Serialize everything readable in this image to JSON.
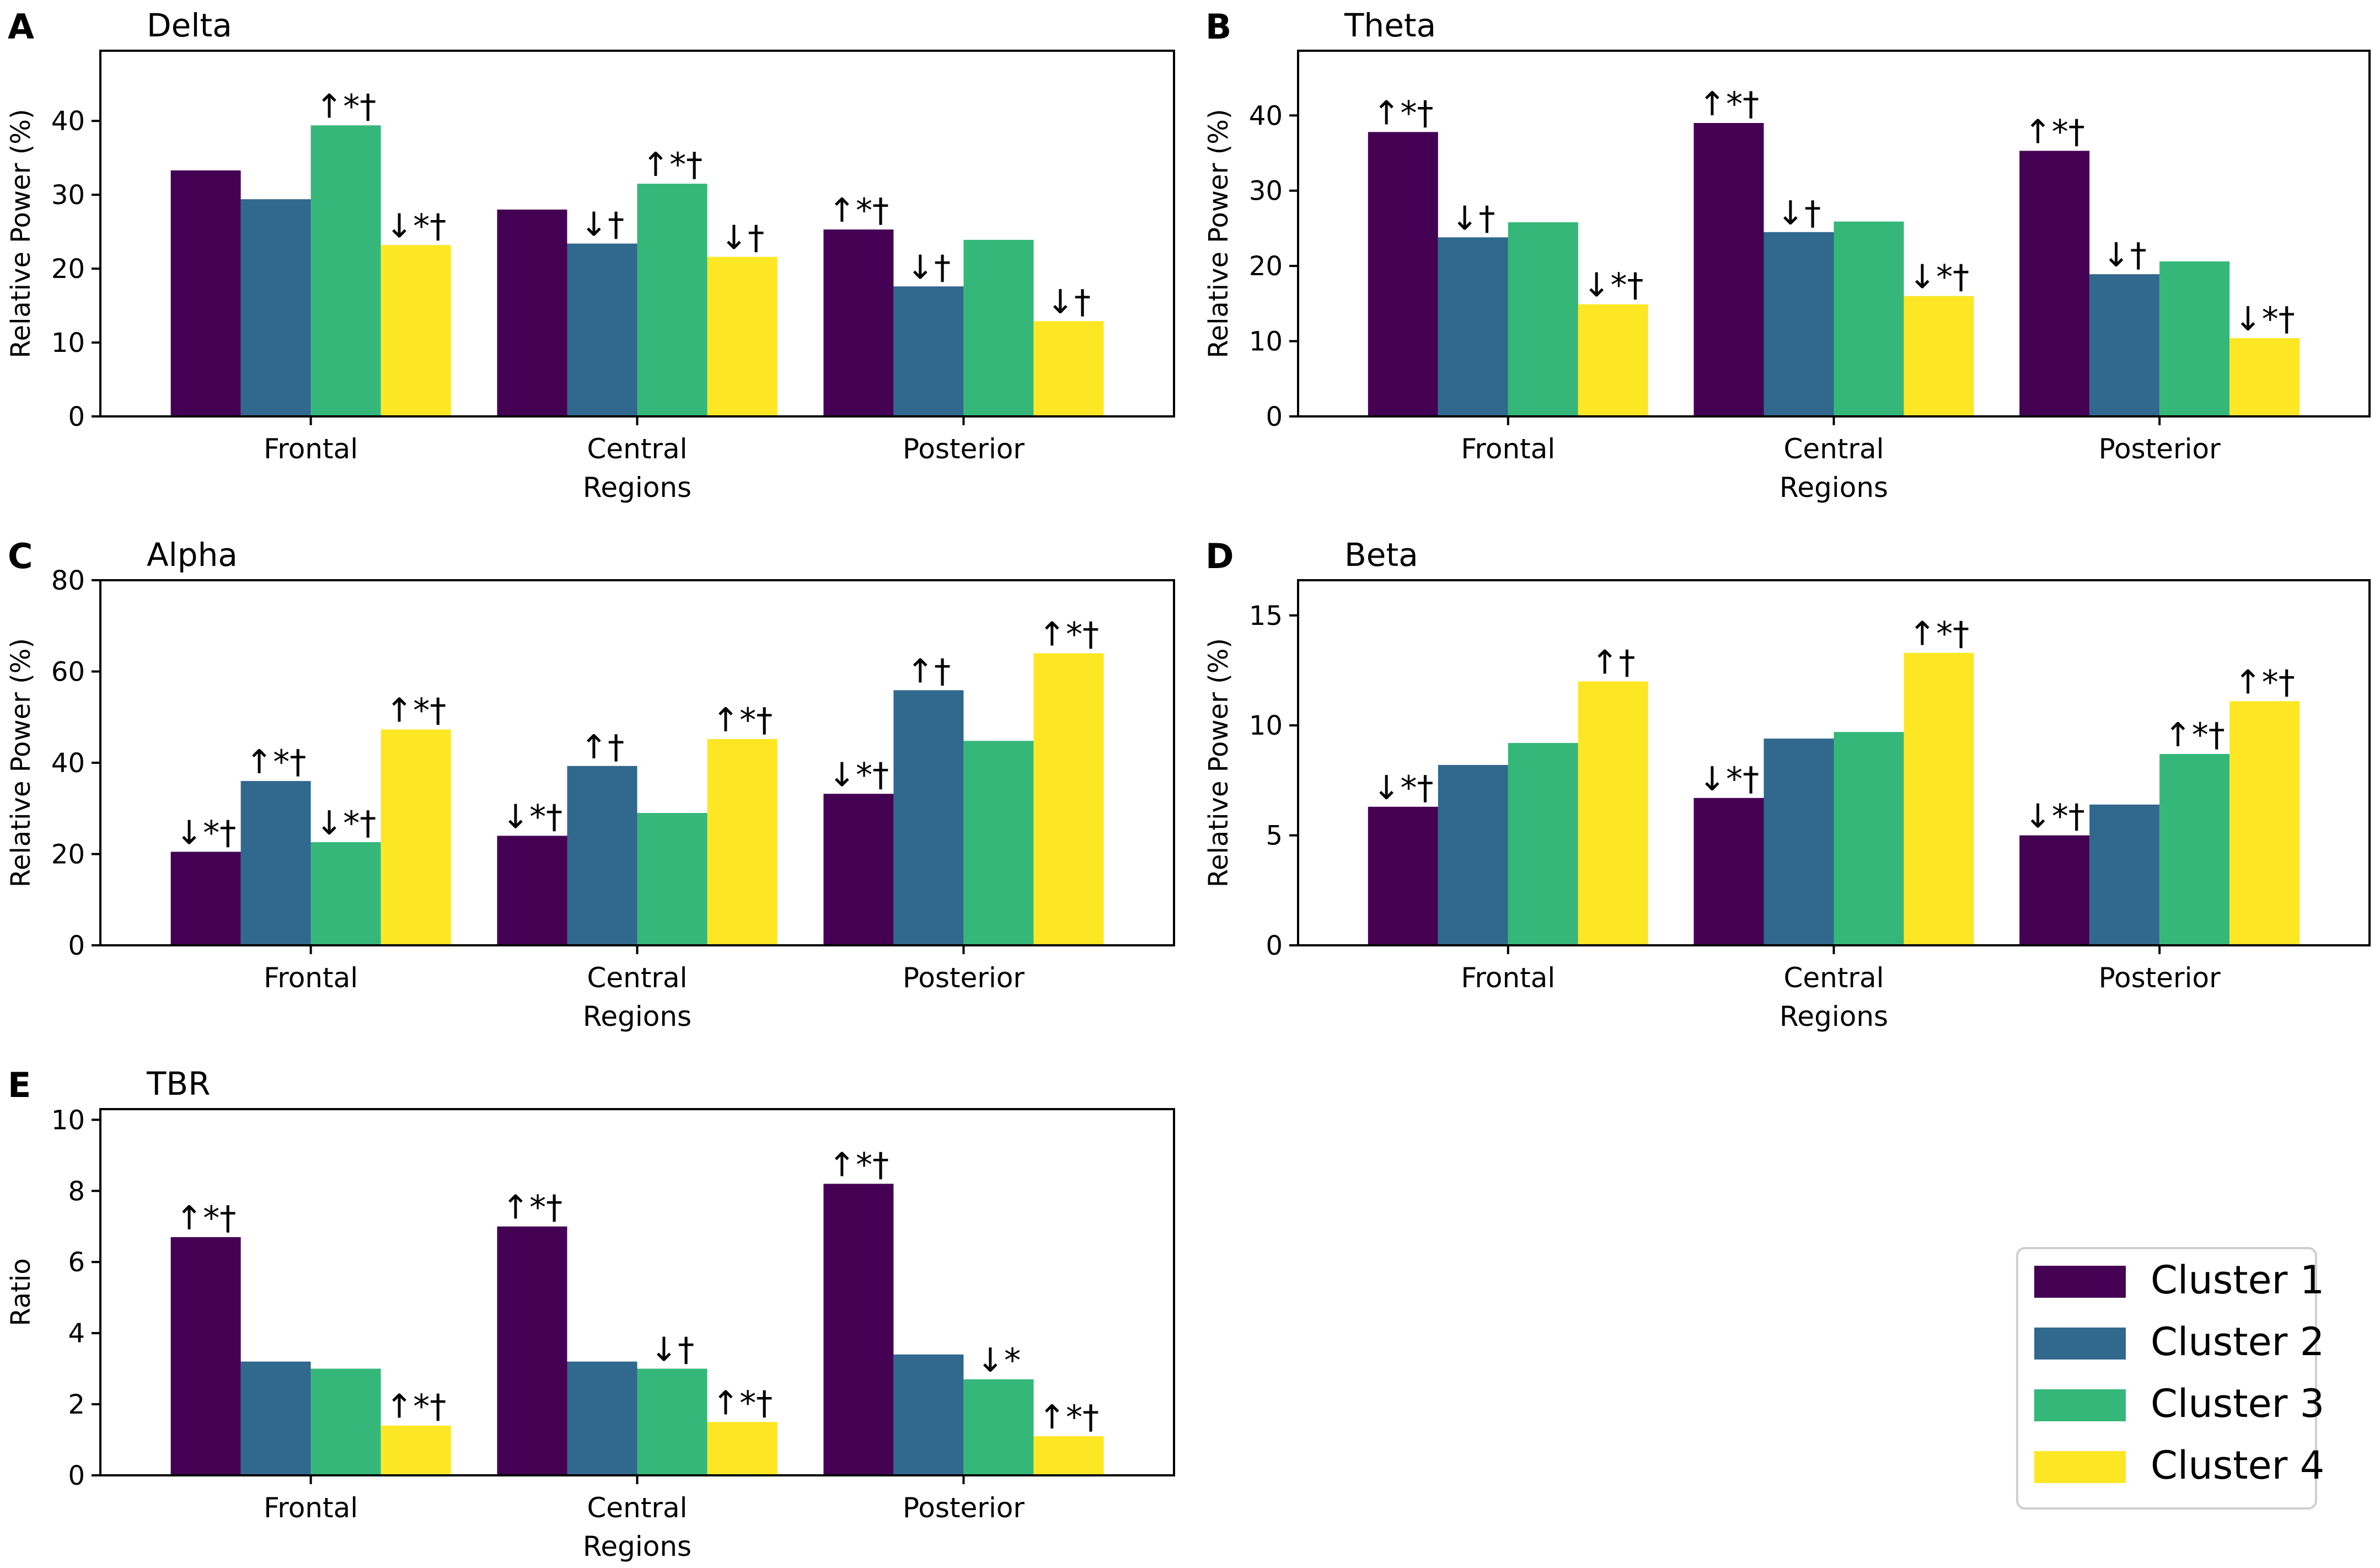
{
  "figure": {
    "legend": {
      "entries": [
        {
          "label": "Cluster 1",
          "color": "#440154"
        },
        {
          "label": "Cluster 2",
          "color": "#31688e"
        },
        {
          "label": "Cluster 3",
          "color": "#35b779"
        },
        {
          "label": "Cluster 4",
          "color": "#fde725"
        }
      ],
      "placement": "bottom-right"
    }
  },
  "chart_data": [
    {
      "type": "bar",
      "panel_letter": "A",
      "title": "Delta",
      "xlabel": "Regions",
      "ylabel": "Relative Power (%)",
      "ylim": [
        0,
        49.5
      ],
      "yticks": [
        "0",
        "10",
        "20",
        "30",
        "40"
      ],
      "categories": [
        "Frontal",
        "Central",
        "Posterior"
      ],
      "series": [
        {
          "name": "Cluster 1",
          "values": [
            33.3,
            28.0,
            25.3
          ],
          "annotations": [
            "",
            "",
            "↑*†"
          ]
        },
        {
          "name": "Cluster 2",
          "values": [
            29.4,
            23.4,
            17.6
          ],
          "annotations": [
            "",
            "↓†",
            "↓†"
          ]
        },
        {
          "name": "Cluster 3",
          "values": [
            39.4,
            31.5,
            23.9
          ],
          "annotations": [
            "↑*†",
            "↑*†",
            ""
          ]
        },
        {
          "name": "Cluster 4",
          "values": [
            23.2,
            21.6,
            12.9
          ],
          "annotations": [
            "↓*†",
            "↓†",
            "↓†"
          ]
        }
      ]
    },
    {
      "type": "bar",
      "panel_letter": "B",
      "title": "Theta",
      "xlabel": "Regions",
      "ylabel": "Relative Power (%)",
      "ylim": [
        0,
        48.6
      ],
      "yticks": [
        "0",
        "10",
        "20",
        "30",
        "40"
      ],
      "categories": [
        "Frontal",
        "Central",
        "Posterior"
      ],
      "series": [
        {
          "name": "Cluster 1",
          "values": [
            37.8,
            39.0,
            35.3
          ],
          "annotations": [
            "↑*†",
            "↑*†",
            "↑*†"
          ]
        },
        {
          "name": "Cluster 2",
          "values": [
            23.8,
            24.5,
            18.9
          ],
          "annotations": [
            "↓†",
            "↓†",
            "↓†"
          ]
        },
        {
          "name": "Cluster 3",
          "values": [
            25.8,
            25.9,
            20.6
          ],
          "annotations": [
            "",
            "",
            ""
          ]
        },
        {
          "name": "Cluster 4",
          "values": [
            14.9,
            16.0,
            10.4
          ],
          "annotations": [
            "↓*†",
            "↓*†",
            "↓*†"
          ]
        }
      ]
    },
    {
      "type": "bar",
      "panel_letter": "C",
      "title": "Alpha",
      "xlabel": "Regions",
      "ylabel": "Relative Power (%)",
      "ylim": [
        0,
        80
      ],
      "yticks": [
        "0",
        "20",
        "40",
        "60",
        "80"
      ],
      "categories": [
        "Frontal",
        "Central",
        "Posterior"
      ],
      "series": [
        {
          "name": "Cluster 1",
          "values": [
            20.5,
            24.0,
            33.2
          ],
          "annotations": [
            "↓*†",
            "↓*†",
            "↓*†"
          ]
        },
        {
          "name": "Cluster 2",
          "values": [
            36.0,
            39.3,
            55.9
          ],
          "annotations": [
            "↑*†",
            "↑†",
            "↑†"
          ]
        },
        {
          "name": "Cluster 3",
          "values": [
            22.6,
            29.0,
            44.8
          ],
          "annotations": [
            "↓*†",
            "",
            ""
          ]
        },
        {
          "name": "Cluster 4",
          "values": [
            47.3,
            45.2,
            64.0
          ],
          "annotations": [
            "↑*†",
            "↑*†",
            "↑*†"
          ]
        }
      ]
    },
    {
      "type": "bar",
      "panel_letter": "D",
      "title": "Beta",
      "xlabel": "Regions",
      "ylabel": "Relative Power (%)",
      "ylim": [
        0,
        16.6
      ],
      "yticks": [
        "0",
        "5",
        "10",
        "15"
      ],
      "categories": [
        "Frontal",
        "Central",
        "Posterior"
      ],
      "series": [
        {
          "name": "Cluster 1",
          "values": [
            6.3,
            6.7,
            5.0
          ],
          "annotations": [
            "↓*†",
            "↓*†",
            "↓*†"
          ]
        },
        {
          "name": "Cluster 2",
          "values": [
            8.2,
            9.4,
            6.4
          ],
          "annotations": [
            "",
            "",
            ""
          ]
        },
        {
          "name": "Cluster 3",
          "values": [
            9.2,
            9.7,
            8.7
          ],
          "annotations": [
            "",
            "",
            "↑*†"
          ]
        },
        {
          "name": "Cluster 4",
          "values": [
            12.0,
            13.3,
            11.1
          ],
          "annotations": [
            "↑†",
            "↑*†",
            "↑*†"
          ]
        }
      ]
    },
    {
      "type": "bar",
      "panel_letter": "E",
      "title": "TBR",
      "xlabel": "Regions",
      "ylabel": "Ratio",
      "ylim": [
        0,
        10.3
      ],
      "yticks": [
        "0",
        "2",
        "4",
        "6",
        "8",
        "10"
      ],
      "categories": [
        "Frontal",
        "Central",
        "Posterior"
      ],
      "series": [
        {
          "name": "Cluster 1",
          "values": [
            6.7,
            7.0,
            8.2
          ],
          "annotations": [
            "↑*†",
            "↑*†",
            "↑*†"
          ]
        },
        {
          "name": "Cluster 2",
          "values": [
            3.2,
            3.2,
            3.4
          ],
          "annotations": [
            "",
            "",
            ""
          ]
        },
        {
          "name": "Cluster 3",
          "values": [
            3.0,
            3.0,
            2.7
          ],
          "annotations": [
            "",
            "↓†",
            "↓*"
          ]
        },
        {
          "name": "Cluster 4",
          "values": [
            1.4,
            1.5,
            1.1
          ],
          "annotations": [
            "↑*†",
            "↑*†",
            "↑*†"
          ]
        }
      ]
    }
  ]
}
